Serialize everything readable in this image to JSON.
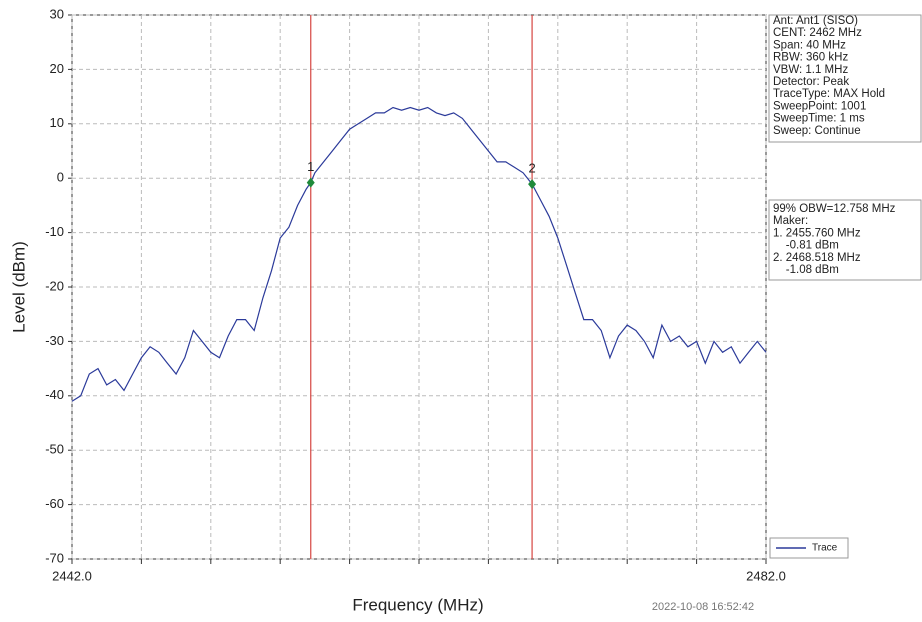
{
  "chart_data": {
    "type": "line",
    "xlabel": "Frequency (MHz)",
    "ylabel": "Level (dBm)",
    "timestamp": "2022-10-08 16:52:42",
    "xlim": [
      2442,
      2482
    ],
    "xticks": [
      {
        "value": 2442,
        "label": "2442.0"
      },
      {
        "value": 2446,
        "label": null
      },
      {
        "value": 2450,
        "label": null
      },
      {
        "value": 2454,
        "label": null
      },
      {
        "value": 2458,
        "label": null
      },
      {
        "value": 2462,
        "label": null
      },
      {
        "value": 2466,
        "label": null
      },
      {
        "value": 2470,
        "label": null
      },
      {
        "value": 2474,
        "label": null
      },
      {
        "value": 2478,
        "label": null
      },
      {
        "value": 2482,
        "label": "2482.0"
      }
    ],
    "ylim": [
      -70,
      30
    ],
    "yticks": [
      30,
      20,
      10,
      0,
      -10,
      -20,
      -30,
      -40,
      -50,
      -60,
      -70
    ],
    "grid": true,
    "legend": "lower right",
    "x": [
      2442,
      2442.5,
      2443,
      2443.5,
      2444,
      2444.5,
      2445,
      2445.5,
      2446,
      2446.5,
      2447,
      2447.5,
      2448,
      2448.5,
      2449,
      2449.5,
      2450,
      2450.5,
      2451,
      2451.5,
      2452,
      2452.5,
      2453,
      2453.5,
      2454,
      2454.5,
      2455,
      2455.5,
      2455.76,
      2456,
      2456.5,
      2457,
      2457.5,
      2458,
      2458.5,
      2459,
      2459.5,
      2460,
      2460.5,
      2461,
      2461.5,
      2462,
      2462.5,
      2463,
      2463.5,
      2464,
      2464.5,
      2465,
      2465.5,
      2466,
      2466.5,
      2467,
      2467.5,
      2468,
      2468.518,
      2469,
      2469.5,
      2470,
      2470.5,
      2471,
      2471.5,
      2472,
      2472.5,
      2473,
      2473.5,
      2474,
      2474.5,
      2475,
      2475.5,
      2476,
      2476.5,
      2477,
      2477.5,
      2478,
      2478.5,
      2479,
      2479.5,
      2480,
      2480.5,
      2481,
      2481.5,
      2482
    ],
    "series": [
      {
        "name": "Trace",
        "color": "#2b3a9a",
        "values": [
          -41,
          -40,
          -36,
          -35,
          -38,
          -37,
          -39,
          -36,
          -33,
          -31,
          -32,
          -34,
          -36,
          -33,
          -28,
          -30,
          -32,
          -33,
          -29,
          -26,
          -26,
          -28,
          -22,
          -17,
          -11,
          -9,
          -5,
          -2,
          -0.81,
          1,
          3,
          5,
          7,
          9,
          10,
          11,
          12,
          12,
          13,
          12.5,
          13,
          12.5,
          13,
          12,
          11.5,
          12,
          11,
          9,
          7,
          5,
          3,
          3,
          2,
          1,
          -1.08,
          -4,
          -7,
          -11,
          -16,
          -21,
          -26,
          -26,
          -28,
          -33,
          -29,
          -27,
          -28,
          -30,
          -33,
          -27,
          -30,
          -29,
          -31,
          -30,
          -34,
          -30,
          -32,
          -31,
          -34,
          -32,
          -30,
          -32
        ]
      }
    ],
    "markers": [
      {
        "label": "1",
        "x": 2455.76,
        "y": -0.81
      },
      {
        "label": "2",
        "x": 2468.518,
        "y": -1.08
      }
    ],
    "marker_color": "#1f8a3a",
    "marker_line_color": "#d9534f",
    "info_box": [
      "Ant: Ant1 (SISO)",
      "CENT: 2462 MHz",
      "Span: 40 MHz",
      "RBW: 360 kHz",
      "VBW: 1.1 MHz",
      "Detector: Peak",
      "TraceType: MAX Hold",
      "SweepPoint: 1001",
      "SweepTime: 1 ms",
      "Sweep: Continue"
    ],
    "marker_box": [
      "99% OBW=12.758 MHz",
      "Maker:",
      "1. 2455.760 MHz",
      "    -0.81 dBm",
      "2. 2468.518 MHz",
      "    -1.08 dBm"
    ]
  }
}
